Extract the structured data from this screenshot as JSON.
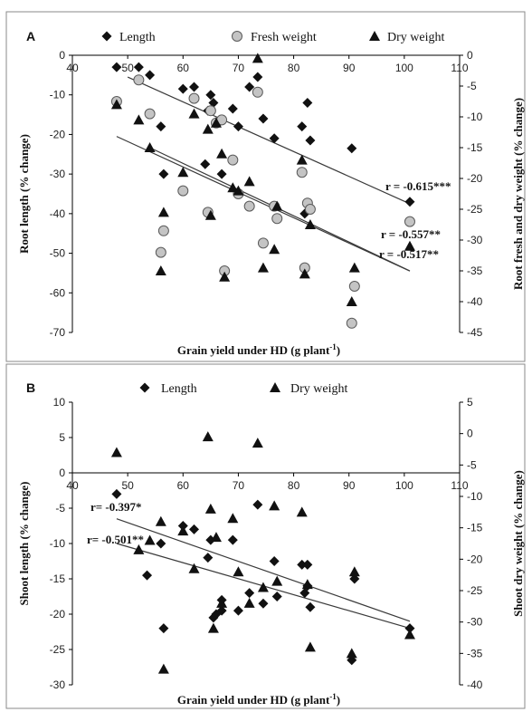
{
  "chart_data": [
    {
      "panel": "A",
      "type": "scatter",
      "xlabel": "Grain yield under HD (g plant",
      "xlabel_sup": "-1",
      "xlabel_close": ")",
      "ylabel_left": "Root length (% change)",
      "ylabel_right": "Root fresh and dry weight (% change)",
      "xlim": [
        40,
        110
      ],
      "xticks": [
        40,
        50,
        60,
        70,
        80,
        90,
        100,
        110
      ],
      "ylim_left": [
        -70,
        0
      ],
      "yticks_left": [
        0,
        -10,
        -20,
        -30,
        -40,
        -50,
        -60,
        -70
      ],
      "ylim_right": [
        -45,
        0
      ],
      "yticks_right": [
        0,
        -5,
        -10,
        -15,
        -20,
        -25,
        -30,
        -35,
        -40,
        -45
      ],
      "legend": [
        "Length",
        "Fresh weight",
        "Dry weight"
      ],
      "series": [
        {
          "name": "Length",
          "marker": "diamond",
          "axis": "left",
          "points": [
            [
              48,
              -3
            ],
            [
              52,
              -3
            ],
            [
              54,
              -5
            ],
            [
              56,
              -18
            ],
            [
              56.5,
              -30
            ],
            [
              60,
              -8.5
            ],
            [
              62,
              -8
            ],
            [
              64,
              -27.5
            ],
            [
              64.5,
              -14
            ],
            [
              65,
              -10
            ],
            [
              65.5,
              -12
            ],
            [
              66,
              -17
            ],
            [
              67,
              -30
            ],
            [
              69,
              -13.5
            ],
            [
              70,
              -18
            ],
            [
              72,
              -8
            ],
            [
              73.5,
              -5.5
            ],
            [
              74.5,
              -16
            ],
            [
              76.5,
              -21
            ],
            [
              81.5,
              -18
            ],
            [
              82,
              -40
            ],
            [
              82.5,
              -37.5
            ],
            [
              82.5,
              -12
            ],
            [
              83,
              -21.5
            ],
            [
              90.5,
              -23.5
            ],
            [
              101,
              -37
            ]
          ]
        },
        {
          "name": "Fresh weight",
          "marker": "circle",
          "axis": "right",
          "points": [
            [
              48,
              -7.5
            ],
            [
              52,
              -4
            ],
            [
              54,
              -9.5
            ],
            [
              56,
              -32
            ],
            [
              56.5,
              -28.5
            ],
            [
              60,
              -22
            ],
            [
              62,
              -7
            ],
            [
              64.5,
              -25.5
            ],
            [
              65,
              -9
            ],
            [
              66,
              -11
            ],
            [
              67,
              -10.5
            ],
            [
              67.5,
              -35
            ],
            [
              69,
              -17
            ],
            [
              70,
              -22.5
            ],
            [
              72,
              -24.5
            ],
            [
              73.5,
              -6
            ],
            [
              74.5,
              -30.5
            ],
            [
              76.5,
              -24.5
            ],
            [
              77,
              -26.5
            ],
            [
              81.5,
              -19
            ],
            [
              82,
              -34.5
            ],
            [
              82.5,
              -24
            ],
            [
              83,
              -25
            ],
            [
              90.5,
              -43.5
            ],
            [
              91,
              -37.5
            ],
            [
              101,
              -27
            ]
          ]
        },
        {
          "name": "Dry weight",
          "marker": "triangle",
          "axis": "right",
          "points": [
            [
              48,
              -8
            ],
            [
              52,
              -10.5
            ],
            [
              54,
              -15
            ],
            [
              56,
              -35
            ],
            [
              56.5,
              -25.5
            ],
            [
              60,
              -19
            ],
            [
              62,
              -9.5
            ],
            [
              64.5,
              -12
            ],
            [
              65,
              -26
            ],
            [
              66,
              -11
            ],
            [
              67,
              -16
            ],
            [
              67.5,
              -36
            ],
            [
              69,
              -21.5
            ],
            [
              70,
              -22
            ],
            [
              72,
              -20.5
            ],
            [
              73.5,
              -0.5
            ],
            [
              74.5,
              -34.5
            ],
            [
              76.5,
              -31.5
            ],
            [
              77,
              -24.5
            ],
            [
              81.5,
              -17
            ],
            [
              82,
              -35.5
            ],
            [
              83,
              -27.5
            ],
            [
              90.5,
              -40
            ],
            [
              91,
              -34.5
            ],
            [
              101,
              -31
            ]
          ]
        }
      ],
      "trendlines": [
        {
          "axis": "left",
          "from": [
            50,
            -5.5
          ],
          "to": [
            101,
            -37.5
          ],
          "label": "r = -0.615***"
        },
        {
          "axis": "right",
          "from": [
            54,
            -15
          ],
          "to": [
            101,
            -35
          ],
          "label": "r = -0.557**"
        },
        {
          "axis": "left",
          "from": [
            48,
            -20.5
          ],
          "to": [
            101,
            -54.5
          ],
          "label": "r = -0.517**"
        }
      ]
    },
    {
      "panel": "B",
      "type": "scatter",
      "xlabel": "Grain yield under HD (g plant",
      "xlabel_sup": "-1",
      "xlabel_close": ")",
      "ylabel_left": "Shoot length (% change)",
      "ylabel_right": "Shoot dry weight (% change)",
      "xlim": [
        40,
        110
      ],
      "xticks": [
        40,
        50,
        60,
        70,
        80,
        90,
        100,
        110
      ],
      "ylim_left": [
        -30,
        10
      ],
      "yticks_left": [
        10,
        5,
        0,
        -5,
        -10,
        -15,
        -20,
        -25,
        -30
      ],
      "ylim_right": [
        -40,
        5
      ],
      "yticks_right": [
        5,
        0,
        -5,
        -10,
        -15,
        -20,
        -25,
        -30,
        -35,
        -40
      ],
      "legend": [
        "Length",
        "Dry weight"
      ],
      "series": [
        {
          "name": "Length",
          "marker": "diamond",
          "axis": "left",
          "points": [
            [
              48,
              -3
            ],
            [
              53.5,
              -14.5
            ],
            [
              56,
              -10
            ],
            [
              56.5,
              -22
            ],
            [
              60,
              -7.5
            ],
            [
              62,
              -8
            ],
            [
              64.5,
              -12
            ],
            [
              65,
              -9.5
            ],
            [
              65.5,
              -20.5
            ],
            [
              66,
              -20
            ],
            [
              67,
              -19.5
            ],
            [
              67,
              -18
            ],
            [
              69,
              -9.5
            ],
            [
              70,
              -19.5
            ],
            [
              72,
              -17
            ],
            [
              73.5,
              -4.5
            ],
            [
              74.5,
              -18.5
            ],
            [
              76.5,
              -12.5
            ],
            [
              77,
              -17.5
            ],
            [
              81.5,
              -13
            ],
            [
              82,
              -17
            ],
            [
              82.5,
              -16
            ],
            [
              82.5,
              -13
            ],
            [
              83,
              -19
            ],
            [
              90.5,
              -26.5
            ],
            [
              91,
              -15
            ],
            [
              101,
              -22
            ]
          ]
        },
        {
          "name": "Dry weight",
          "marker": "triangle",
          "axis": "right",
          "points": [
            [
              48,
              -3
            ],
            [
              52,
              -18.5
            ],
            [
              54,
              -17
            ],
            [
              56,
              -14
            ],
            [
              56.5,
              -37.5
            ],
            [
              60,
              -15.5
            ],
            [
              62,
              -21.5
            ],
            [
              64.5,
              -0.5
            ],
            [
              65,
              -12
            ],
            [
              65.5,
              -31
            ],
            [
              66,
              -16.5
            ],
            [
              67,
              -27
            ],
            [
              69,
              -13.5
            ],
            [
              70,
              -22
            ],
            [
              72,
              -27
            ],
            [
              73.5,
              -1.5
            ],
            [
              74.5,
              -24.5
            ],
            [
              76.5,
              -11.5
            ],
            [
              77,
              -23.5
            ],
            [
              81.5,
              -12.5
            ],
            [
              82.5,
              -24
            ],
            [
              83,
              -34
            ],
            [
              90.5,
              -35
            ],
            [
              91,
              -22
            ],
            [
              101,
              -32
            ]
          ]
        }
      ],
      "trendlines": [
        {
          "axis": "left",
          "from": [
            48,
            -6.5
          ],
          "to": [
            101,
            -21
          ],
          "label": "r= -0.397*"
        },
        {
          "axis": "left",
          "from": [
            48,
            -10
          ],
          "to": [
            101,
            -22
          ],
          "label": "r= -0.501**"
        }
      ]
    }
  ]
}
